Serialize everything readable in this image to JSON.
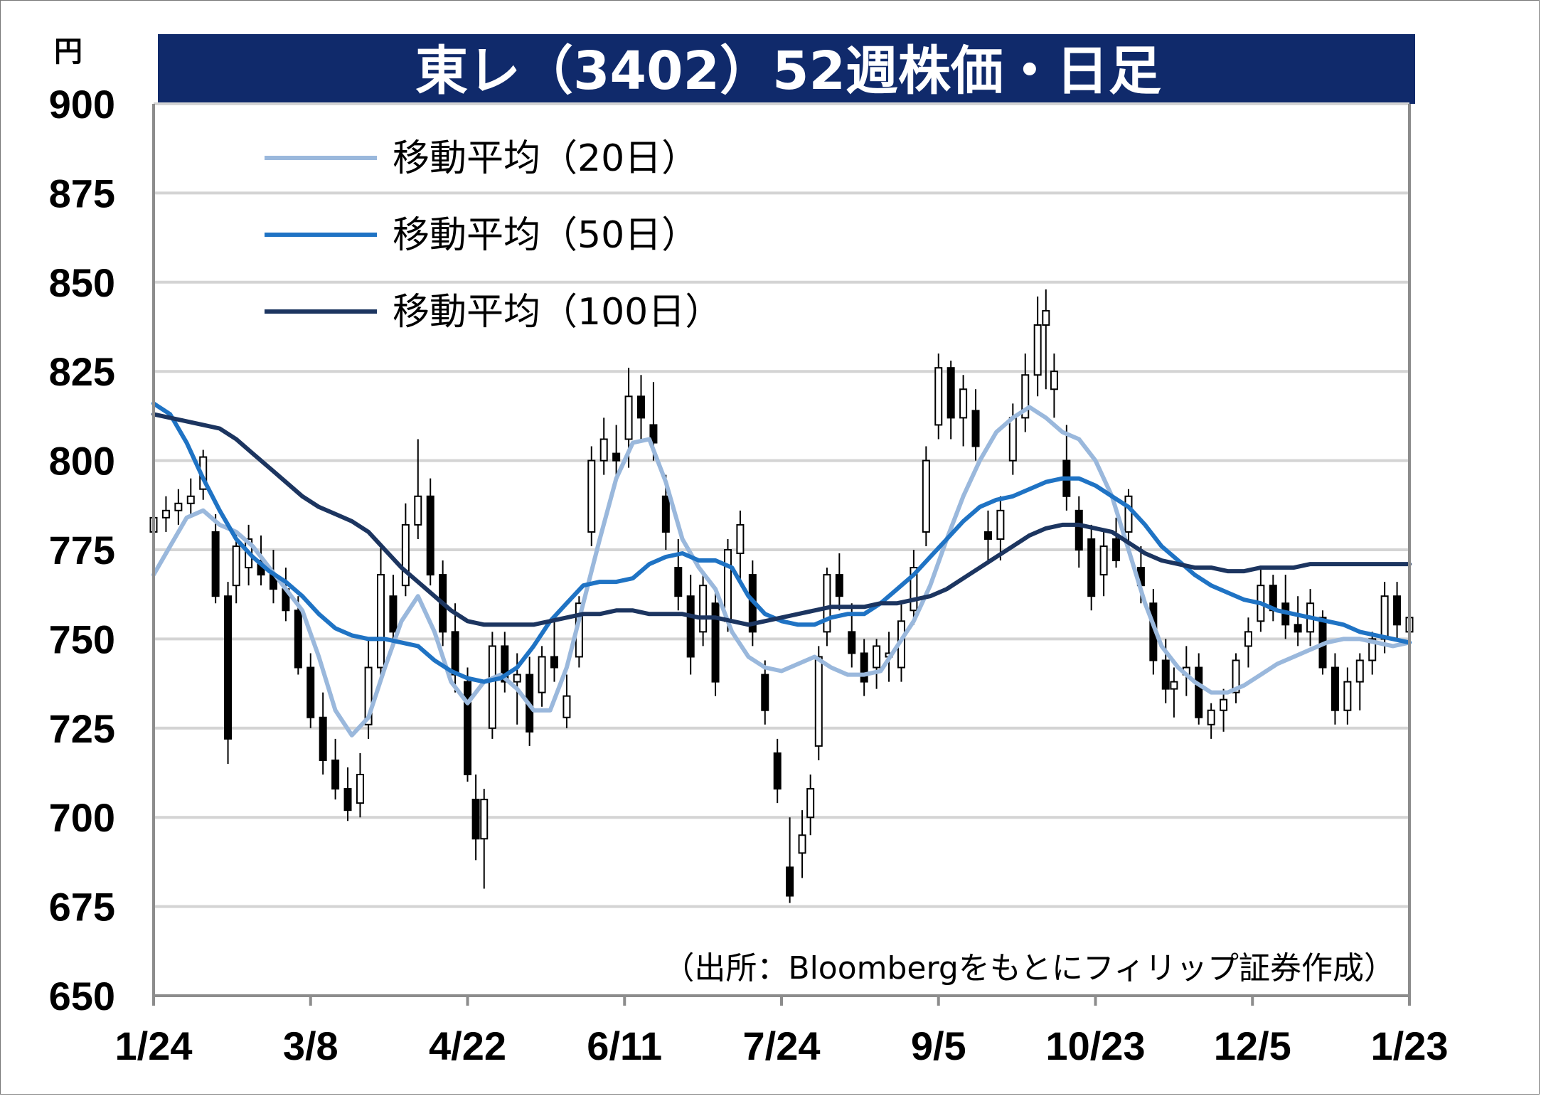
{
  "chart_data": {
    "type": "line",
    "subtype": "candlestick",
    "title": "東レ（3402）52週株価・日足",
    "unit": "円",
    "ylim": [
      650,
      900
    ],
    "yticks": [
      900,
      875,
      850,
      825,
      800,
      775,
      750,
      725,
      700,
      675,
      650
    ],
    "xticks": [
      "1/24",
      "3/8",
      "4/22",
      "6/11",
      "7/24",
      "9/5",
      "10/23",
      "12/5",
      "1/23"
    ],
    "grid": true,
    "legend_position": "top-left",
    "source": "（出所：Bloombergをもとにフィリップ証券作成）",
    "colors": {
      "title_bg": "#102a6b",
      "ma20": "#9ab8dc",
      "ma50": "#1f73c4",
      "ma100": "#1c3560",
      "candle": "#000000"
    },
    "candles": {
      "index_note": "trading day index 0..246 (1/24 to 1/23)",
      "ohlc": [
        [
          0,
          780,
          786,
          775,
          784
        ],
        [
          3,
          784,
          790,
          780,
          786
        ],
        [
          6,
          786,
          792,
          782,
          788
        ],
        [
          9,
          788,
          795,
          784,
          790
        ],
        [
          12,
          792,
          803,
          789,
          801
        ],
        [
          15,
          780,
          785,
          760,
          762
        ],
        [
          18,
          762,
          766,
          715,
          722
        ],
        [
          20,
          765,
          780,
          760,
          776
        ],
        [
          23,
          770,
          782,
          765,
          778
        ],
        [
          26,
          772,
          779,
          765,
          768
        ],
        [
          29,
          768,
          775,
          760,
          764
        ],
        [
          32,
          764,
          770,
          755,
          758
        ],
        [
          35,
          758,
          762,
          740,
          742
        ],
        [
          38,
          742,
          746,
          725,
          728
        ],
        [
          41,
          728,
          735,
          712,
          716
        ],
        [
          44,
          716,
          722,
          705,
          708
        ],
        [
          47,
          708,
          714,
          699,
          702
        ],
        [
          50,
          704,
          718,
          700,
          712
        ],
        [
          52,
          726,
          750,
          722,
          742
        ],
        [
          55,
          742,
          776,
          738,
          768
        ],
        [
          58,
          762,
          768,
          748,
          752
        ],
        [
          61,
          765,
          788,
          762,
          782
        ],
        [
          64,
          782,
          806,
          778,
          790
        ],
        [
          67,
          790,
          795,
          765,
          768
        ],
        [
          70,
          768,
          772,
          748,
          752
        ],
        [
          73,
          752,
          760,
          735,
          740
        ],
        [
          76,
          738,
          742,
          710,
          712
        ],
        [
          78,
          705,
          712,
          688,
          694
        ],
        [
          80,
          694,
          708,
          680,
          705
        ],
        [
          82,
          725,
          752,
          722,
          748
        ],
        [
          85,
          748,
          752,
          735,
          738
        ],
        [
          88,
          738,
          746,
          726,
          740
        ],
        [
          91,
          740,
          745,
          720,
          724
        ],
        [
          94,
          735,
          748,
          731,
          745
        ],
        [
          97,
          745,
          755,
          738,
          742
        ],
        [
          100,
          728,
          740,
          725,
          734
        ],
        [
          103,
          745,
          762,
          742,
          760
        ],
        [
          106,
          780,
          804,
          776,
          800
        ],
        [
          109,
          800,
          812,
          796,
          806
        ],
        [
          112,
          802,
          810,
          796,
          800
        ],
        [
          115,
          806,
          826,
          798,
          818
        ],
        [
          118,
          818,
          824,
          806,
          812
        ],
        [
          121,
          810,
          822,
          800,
          805
        ],
        [
          124,
          790,
          796,
          775,
          780
        ],
        [
          127,
          770,
          778,
          758,
          762
        ],
        [
          130,
          762,
          768,
          740,
          745
        ],
        [
          133,
          752,
          768,
          748,
          765
        ],
        [
          136,
          760,
          764,
          734,
          738
        ],
        [
          139,
          755,
          778,
          752,
          775
        ],
        [
          142,
          774,
          786,
          766,
          782
        ],
        [
          145,
          768,
          772,
          748,
          752
        ],
        [
          148,
          740,
          744,
          726,
          730
        ],
        [
          151,
          718,
          722,
          704,
          708
        ],
        [
          154,
          686,
          700,
          676,
          678
        ],
        [
          157,
          690,
          702,
          683,
          695
        ],
        [
          159,
          700,
          712,
          695,
          708
        ],
        [
          161,
          720,
          748,
          716,
          745
        ],
        [
          163,
          752,
          770,
          748,
          768
        ],
        [
          166,
          768,
          774,
          758,
          762
        ],
        [
          169,
          752,
          760,
          742,
          746
        ],
        [
          172,
          746,
          750,
          734,
          738
        ],
        [
          175,
          742,
          750,
          736,
          748
        ],
        [
          178,
          745,
          752,
          738,
          746
        ],
        [
          181,
          742,
          760,
          738,
          755
        ],
        [
          184,
          758,
          775,
          754,
          770
        ],
        [
          187,
          780,
          804,
          776,
          800
        ],
        [
          190,
          810,
          830,
          806,
          826
        ],
        [
          193,
          826,
          828,
          806,
          812
        ],
        [
          196,
          812,
          824,
          804,
          820
        ],
        [
          199,
          814,
          820,
          800,
          804
        ],
        [
          202,
          780,
          786,
          772,
          778
        ],
        [
          205,
          778,
          790,
          772,
          786
        ],
        [
          208,
          800,
          816,
          796,
          812
        ],
        [
          211,
          812,
          830,
          808,
          824
        ],
        [
          214,
          824,
          846,
          818,
          838
        ],
        [
          216,
          838,
          848,
          820,
          842
        ],
        [
          218,
          820,
          830,
          812,
          825
        ],
        [
          221,
          800,
          810,
          786,
          790
        ],
        [
          224,
          786,
          790,
          770,
          775
        ],
        [
          227,
          778,
          782,
          758,
          762
        ],
        [
          230,
          768,
          780,
          762,
          776
        ],
        [
          233,
          778,
          784,
          770,
          772
        ],
        [
          236,
          780,
          792,
          776,
          790
        ],
        [
          239,
          770,
          776,
          760,
          765
        ],
        [
          242,
          760,
          764,
          740,
          744
        ],
        [
          245,
          744,
          750,
          732,
          736
        ],
        [
          247,
          736,
          742,
          728,
          738
        ],
        [
          250,
          740,
          748,
          734,
          742
        ],
        [
          253,
          742,
          746,
          726,
          728
        ],
        [
          256,
          726,
          732,
          722,
          730
        ],
        [
          259,
          730,
          736,
          724,
          733
        ],
        [
          262,
          735,
          746,
          732,
          744
        ],
        [
          265,
          748,
          756,
          742,
          752
        ],
        [
          268,
          755,
          770,
          752,
          765
        ],
        [
          271,
          765,
          768,
          755,
          758
        ],
        [
          274,
          760,
          768,
          750,
          754
        ],
        [
          277,
          754,
          762,
          748,
          752
        ],
        [
          280,
          752,
          764,
          748,
          760
        ],
        [
          283,
          756,
          758,
          740,
          742
        ],
        [
          286,
          742,
          746,
          726,
          730
        ],
        [
          289,
          730,
          742,
          726,
          738
        ],
        [
          292,
          738,
          746,
          730,
          744
        ],
        [
          295,
          744,
          752,
          740,
          750
        ],
        [
          298,
          750,
          766,
          746,
          762
        ],
        [
          301,
          762,
          766,
          750,
          754
        ],
        [
          304,
          752,
          758,
          748,
          756
        ]
      ]
    },
    "series": [
      {
        "name": "移動平均（20日）",
        "color": "#9ab8dc",
        "x": [
          0,
          4,
          8,
          12,
          16,
          20,
          24,
          28,
          32,
          36,
          40,
          44,
          48,
          52,
          56,
          60,
          64,
          68,
          72,
          76,
          80,
          84,
          88,
          92,
          96,
          100,
          104,
          108,
          112,
          116,
          120,
          124,
          128,
          132,
          136,
          140,
          144,
          148,
          152,
          156,
          160,
          164,
          168,
          172,
          176,
          180,
          184,
          188,
          192,
          196,
          200,
          204,
          208,
          212,
          216,
          220,
          224,
          228,
          232,
          236,
          240,
          244,
          248,
          252,
          256,
          260,
          264,
          268,
          272,
          276,
          280,
          284,
          288,
          292,
          296,
          300,
          304
        ],
        "values": [
          768,
          776,
          784,
          786,
          782,
          780,
          776,
          770,
          764,
          758,
          745,
          730,
          723,
          728,
          742,
          755,
          762,
          752,
          738,
          732,
          738,
          740,
          736,
          730,
          730,
          742,
          760,
          778,
          795,
          805,
          806,
          794,
          778,
          770,
          764,
          752,
          745,
          742,
          741,
          743,
          745,
          742,
          740,
          740,
          741,
          748,
          755,
          765,
          778,
          790,
          800,
          808,
          812,
          815,
          812,
          808,
          806,
          800,
          790,
          775,
          760,
          748,
          742,
          738,
          735,
          735,
          737,
          740,
          743,
          745,
          747,
          749,
          750,
          750,
          749,
          748,
          749
        ]
      },
      {
        "name": "移動平均（50日）",
        "color": "#1f73c4",
        "x": [
          0,
          4,
          8,
          12,
          16,
          20,
          24,
          28,
          32,
          36,
          40,
          44,
          48,
          52,
          56,
          60,
          64,
          68,
          72,
          76,
          80,
          84,
          88,
          92,
          96,
          100,
          104,
          108,
          112,
          116,
          120,
          124,
          128,
          132,
          136,
          140,
          144,
          148,
          152,
          156,
          160,
          164,
          168,
          172,
          176,
          180,
          184,
          188,
          192,
          196,
          200,
          204,
          208,
          212,
          216,
          220,
          224,
          228,
          232,
          236,
          240,
          244,
          248,
          252,
          256,
          260,
          264,
          268,
          272,
          276,
          280,
          284,
          288,
          292,
          296,
          300,
          304
        ],
        "values": [
          816,
          813,
          805,
          795,
          786,
          778,
          773,
          769,
          766,
          762,
          757,
          753,
          751,
          750,
          750,
          749,
          748,
          744,
          741,
          739,
          738,
          739,
          742,
          748,
          755,
          760,
          765,
          766,
          766,
          767,
          771,
          773,
          774,
          772,
          772,
          770,
          762,
          757,
          755,
          754,
          754,
          756,
          757,
          757,
          760,
          764,
          768,
          773,
          778,
          783,
          787,
          789,
          790,
          792,
          794,
          795,
          795,
          793,
          790,
          787,
          782,
          776,
          772,
          768,
          765,
          763,
          761,
          760,
          758,
          757,
          756,
          755,
          754,
          752,
          751,
          750,
          749
        ]
      },
      {
        "name": "移動平均（100日）",
        "color": "#1c3560",
        "x": [
          0,
          4,
          8,
          12,
          16,
          20,
          24,
          28,
          32,
          36,
          40,
          44,
          48,
          52,
          56,
          60,
          64,
          68,
          72,
          76,
          80,
          84,
          88,
          92,
          96,
          100,
          104,
          108,
          112,
          116,
          120,
          124,
          128,
          132,
          136,
          140,
          144,
          148,
          152,
          156,
          160,
          164,
          168,
          172,
          176,
          180,
          184,
          188,
          192,
          196,
          200,
          204,
          208,
          212,
          216,
          220,
          224,
          228,
          232,
          236,
          240,
          244,
          248,
          252,
          256,
          260,
          264,
          268,
          272,
          276,
          280,
          284,
          288,
          292,
          296,
          300,
          304
        ],
        "values": [
          813,
          812,
          811,
          810,
          809,
          806,
          802,
          798,
          794,
          790,
          787,
          785,
          783,
          780,
          775,
          770,
          766,
          762,
          758,
          755,
          754,
          754,
          754,
          754,
          755,
          756,
          757,
          757,
          758,
          758,
          757,
          757,
          757,
          756,
          756,
          755,
          754,
          755,
          756,
          757,
          758,
          759,
          759,
          759,
          760,
          760,
          761,
          762,
          764,
          767,
          770,
          773,
          776,
          779,
          781,
          782,
          782,
          781,
          780,
          777,
          774,
          772,
          771,
          770,
          770,
          769,
          769,
          770,
          770,
          770,
          771,
          771,
          771,
          771,
          771,
          771,
          771
        ]
      }
    ]
  }
}
